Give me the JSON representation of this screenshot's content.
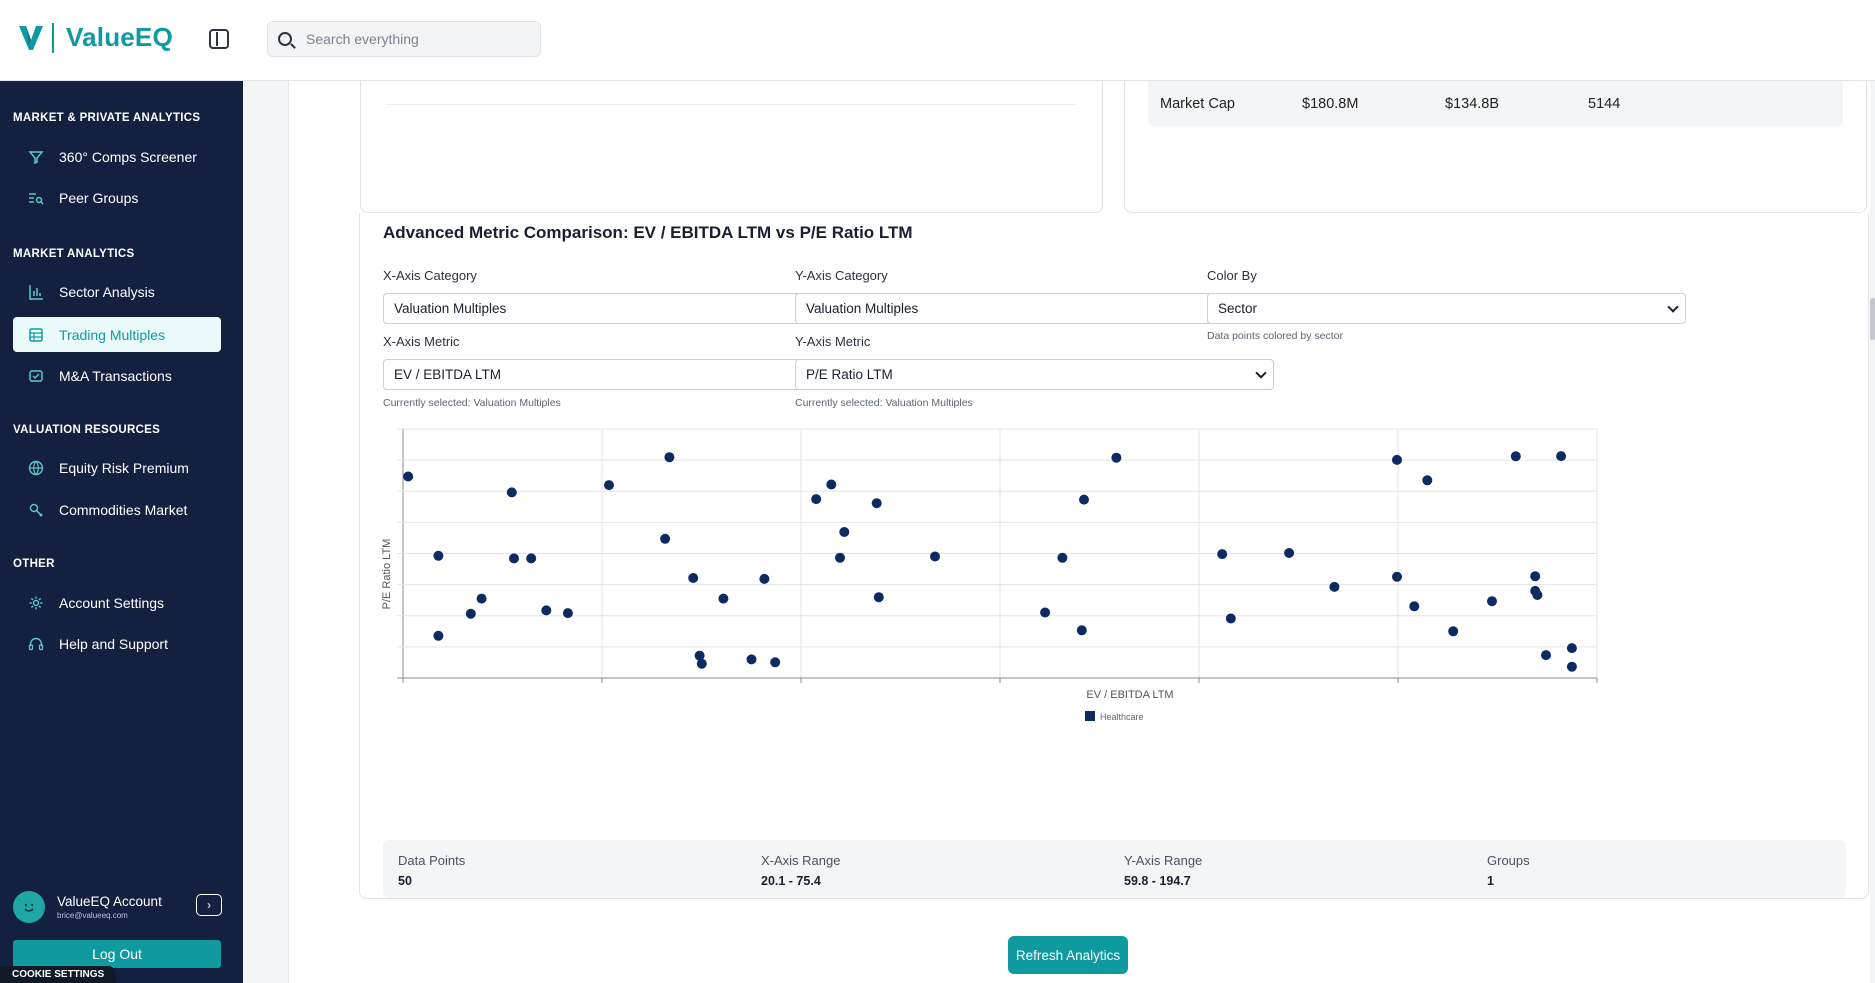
{
  "app": {
    "logo_text": "ValueEQ"
  },
  "search": {
    "placeholder": "Search everything"
  },
  "sidebar": {
    "sections": [
      {
        "title": "MARKET & PRIVATE ANALYTICS",
        "items": [
          {
            "label": "360° Comps Screener",
            "icon": "funnel-icon"
          },
          {
            "label": "Peer Groups",
            "icon": "list-search-icon"
          }
        ]
      },
      {
        "title": "MARKET ANALYTICS",
        "items": [
          {
            "label": "Sector Analysis",
            "icon": "bar-chart-icon"
          },
          {
            "label": "Trading Multiples",
            "icon": "table-icon",
            "active": true
          },
          {
            "label": "M&A Transactions",
            "icon": "handshake-icon"
          }
        ]
      },
      {
        "title": "VALUATION RESOURCES",
        "items": [
          {
            "label": "Equity Risk Premium",
            "icon": "globe-icon"
          },
          {
            "label": "Commodities Market",
            "icon": "commodity-icon"
          }
        ]
      },
      {
        "title": "OTHER",
        "items": [
          {
            "label": "Account Settings",
            "icon": "gear-icon"
          },
          {
            "label": "Help and Support",
            "icon": "headset-icon"
          }
        ]
      }
    ],
    "account": {
      "name": "ValueEQ Account",
      "email": "brice@valueeq.com"
    },
    "logout_label": "Log Out",
    "cookie_label": "COOKIE SETTINGS"
  },
  "summary_row": {
    "metric": "Market Cap",
    "min": "$180.8M",
    "max": "$134.8B",
    "count": "5144"
  },
  "advanced": {
    "title": "Advanced Metric Comparison: EV / EBITDA LTM vs P/E Ratio LTM",
    "x_category": {
      "label": "X-Axis Category",
      "value": "Valuation Multiples"
    },
    "y_category": {
      "label": "Y-Axis Category",
      "value": "Valuation Multiples"
    },
    "color_by": {
      "label": "Color By",
      "value": "Sector",
      "hint": "Data points colored by sector"
    },
    "x_metric": {
      "label": "X-Axis Metric",
      "value": "EV / EBITDA LTM",
      "hint": "Currently selected: Valuation Multiples"
    },
    "y_metric": {
      "label": "Y-Axis Metric",
      "value": "P/E Ratio LTM",
      "hint": "Currently selected: Valuation Multiples"
    }
  },
  "chart_data": {
    "type": "scatter",
    "xlabel": "EV / EBITDA LTM",
    "ylabel": "P/E Ratio LTM",
    "xlim": [
      20.1,
      75.4
    ],
    "ylim": [
      59.8,
      194.7
    ],
    "grid": true,
    "legend_position": "bottom-center",
    "series": [
      {
        "name": "Healthcare",
        "color": "#0d2a63",
        "points": [
          [
            20.2,
            172.8
          ],
          [
            21.6,
            126.5
          ],
          [
            21.6,
            79.8
          ],
          [
            23.1,
            92.7
          ],
          [
            23.6,
            101.5
          ],
          [
            25.0,
            163.5
          ],
          [
            25.1,
            125.0
          ],
          [
            25.9,
            125.0
          ],
          [
            26.6,
            94.6
          ],
          [
            27.6,
            93.0
          ],
          [
            29.5,
            167.8
          ],
          [
            32.1,
            136.4
          ],
          [
            32.3,
            184.1
          ],
          [
            33.4,
            113.5
          ],
          [
            33.7,
            68.2
          ],
          [
            33.8,
            63.5
          ],
          [
            34.8,
            101.5
          ],
          [
            36.1,
            66.0
          ],
          [
            36.7,
            113.0
          ],
          [
            37.2,
            64.3
          ],
          [
            39.1,
            159.6
          ],
          [
            39.8,
            168.1
          ],
          [
            40.2,
            125.3
          ],
          [
            40.4,
            140.4
          ],
          [
            41.9,
            157.2
          ],
          [
            42.0,
            102.3
          ],
          [
            44.6,
            126.1
          ],
          [
            49.7,
            93.4
          ],
          [
            50.5,
            125.3
          ],
          [
            51.4,
            83.0
          ],
          [
            51.5,
            159.3
          ],
          [
            53.0,
            183.8
          ],
          [
            57.9,
            127.5
          ],
          [
            58.3,
            89.9
          ],
          [
            61.0,
            128.1
          ],
          [
            63.1,
            108.3
          ],
          [
            66.0,
            182.5
          ],
          [
            66.0,
            114.2
          ],
          [
            66.8,
            97.0
          ],
          [
            67.4,
            170.6
          ],
          [
            68.6,
            82.4
          ],
          [
            70.4,
            100.0
          ],
          [
            71.5,
            184.6
          ],
          [
            72.4,
            114.6
          ],
          [
            72.4,
            106.0
          ],
          [
            72.5,
            103.6
          ],
          [
            72.9,
            68.5
          ],
          [
            73.6,
            184.7
          ],
          [
            74.1,
            72.6
          ],
          [
            74.1,
            61.7
          ]
        ]
      }
    ]
  },
  "stats": [
    {
      "label": "Data Points",
      "value": "50"
    },
    {
      "label": "X-Axis Range",
      "value": "20.1 - 75.4"
    },
    {
      "label": "Y-Axis Range",
      "value": "59.8 - 194.7"
    },
    {
      "label": "Groups",
      "value": "1"
    }
  ],
  "refresh_label": "Refresh Analytics"
}
